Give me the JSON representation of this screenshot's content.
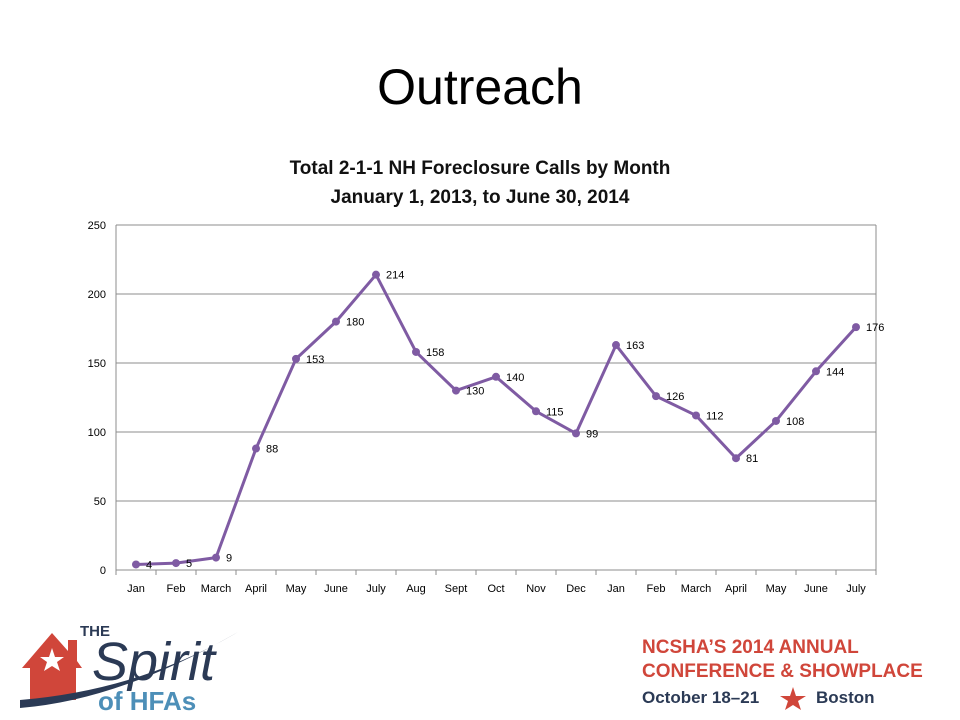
{
  "slide": {
    "title": "Outreach"
  },
  "chart_data": {
    "type": "line",
    "title": "Total 2-1-1 NH Foreclosure Calls by Month",
    "subtitle": "January 1, 2013, to June 30, 2014",
    "xlabel": "",
    "ylabel": "",
    "ylim": [
      0,
      250
    ],
    "yticks": [
      "0",
      "50",
      "100",
      "150",
      "200",
      "250"
    ],
    "grid": true,
    "legend": "none",
    "line_color": "#7f5ba3",
    "categories": [
      "Jan",
      "Feb",
      "March",
      "April",
      "May",
      "June",
      "July",
      "Aug",
      "Sept",
      "Oct",
      "Nov",
      "Dec",
      "Jan",
      "Feb",
      "March",
      "April",
      "May",
      "June",
      "July"
    ],
    "values": [
      4,
      5,
      9,
      88,
      153,
      180,
      214,
      158,
      130,
      140,
      115,
      99,
      163,
      126,
      112,
      81,
      108,
      144,
      176
    ]
  },
  "footer": {
    "logo_the": "THE",
    "logo_spirit": "Spirit",
    "logo_of_hfas": "of HFAs",
    "conference_line1": "NCSHA’S 2014 ANNUAL",
    "conference_line2": "CONFERENCE & SHOWPLACE",
    "dates": "October 18–21",
    "city": "Boston",
    "red": "#d0463a",
    "navy": "#2b3a55"
  }
}
